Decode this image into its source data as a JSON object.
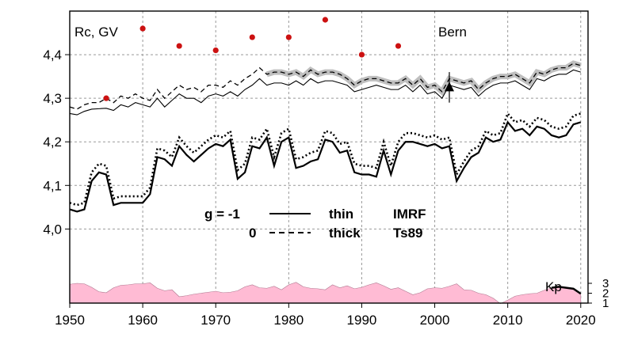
{
  "chart_data": {
    "type": "line",
    "ylabel": "Rc, GV",
    "station": "Bern",
    "kp_label": "Kp",
    "x_range": [
      1950,
      2021
    ],
    "y_range": [
      3.83,
      4.5
    ],
    "x_ticks": [
      "1950",
      "1960",
      "1970",
      "1980",
      "1990",
      "2000",
      "2010",
      "2020"
    ],
    "y_ticks": [
      "4,0",
      "4,1",
      "4,2",
      "4,3",
      "4,4"
    ],
    "kp_ticks": [
      "1",
      "2",
      "3"
    ],
    "grid": true,
    "legend": {
      "row1": {
        "g": "g  = -1",
        "model": "thin",
        "field": "IMRF"
      },
      "row2": {
        "g": "0",
        "model": "thick",
        "field": "Ts89"
      }
    },
    "years": [
      1950,
      1951,
      1952,
      1953,
      1954,
      1955,
      1956,
      1957,
      1958,
      1959,
      1960,
      1961,
      1962,
      1963,
      1964,
      1965,
      1966,
      1967,
      1968,
      1969,
      1970,
      1971,
      1972,
      1973,
      1974,
      1975,
      1976,
      1977,
      1978,
      1979,
      1980,
      1981,
      1982,
      1983,
      1984,
      1985,
      1986,
      1987,
      1988,
      1989,
      1990,
      1991,
      1992,
      1993,
      1994,
      1995,
      1996,
      1997,
      1998,
      1999,
      2000,
      2001,
      2002,
      2003,
      2004,
      2005,
      2006,
      2007,
      2008,
      2009,
      2010,
      2011,
      2012,
      2013,
      2014,
      2015,
      2016,
      2017,
      2018,
      2019,
      2020
    ],
    "series": [
      {
        "name": "IMRF, g=-1, thin",
        "style": "thin-solid",
        "values": [
          4.265,
          4.262,
          4.27,
          4.275,
          4.276,
          4.277,
          4.272,
          4.285,
          4.28,
          4.29,
          4.285,
          4.28,
          4.3,
          4.28,
          4.295,
          4.31,
          4.3,
          4.3,
          4.29,
          4.305,
          4.31,
          4.305,
          4.315,
          4.305,
          4.32,
          4.33,
          4.345,
          4.33,
          4.335,
          4.335,
          4.33,
          4.34,
          4.33,
          4.345,
          4.335,
          4.34,
          4.34,
          4.335,
          4.33,
          4.315,
          4.32,
          4.325,
          4.33,
          4.325,
          4.32,
          4.32,
          4.33,
          4.315,
          4.33,
          4.31,
          4.315,
          4.3,
          4.33,
          4.325,
          4.32,
          4.325,
          4.305,
          4.32,
          4.33,
          4.335,
          4.335,
          4.34,
          4.33,
          4.32,
          4.345,
          4.34,
          4.35,
          4.355,
          4.355,
          4.365,
          4.36
        ]
      },
      {
        "name": "Ts89, g=-1, thick",
        "style": "thin-dashed",
        "values": [
          4.28,
          4.275,
          4.285,
          4.29,
          4.29,
          4.3,
          4.29,
          4.305,
          4.3,
          4.31,
          4.3,
          4.295,
          4.32,
          4.3,
          4.315,
          4.33,
          4.32,
          4.325,
          4.315,
          4.33,
          4.33,
          4.325,
          4.34,
          4.33,
          4.345,
          4.355,
          4.37,
          4.355,
          4.36,
          4.36,
          4.355,
          4.36,
          4.35,
          4.365,
          4.355,
          4.36,
          4.36,
          4.355,
          4.345,
          4.33,
          4.34,
          4.345,
          4.345,
          4.34,
          4.335,
          4.335,
          4.345,
          4.33,
          4.345,
          4.325,
          4.33,
          4.315,
          4.345,
          4.34,
          4.335,
          4.34,
          4.32,
          4.335,
          4.345,
          4.35,
          4.35,
          4.355,
          4.345,
          4.335,
          4.36,
          4.355,
          4.365,
          4.37,
          4.37,
          4.38,
          4.375
        ]
      },
      {
        "name": "IMRF, g=0, thin",
        "style": "thick-solid",
        "values": [
          4.045,
          4.04,
          4.045,
          4.11,
          4.13,
          4.125,
          4.055,
          4.06,
          4.06,
          4.06,
          4.06,
          4.08,
          4.165,
          4.16,
          4.145,
          4.19,
          4.17,
          4.155,
          4.17,
          4.185,
          4.195,
          4.19,
          4.205,
          4.115,
          4.13,
          4.19,
          4.185,
          4.21,
          4.145,
          4.2,
          4.21,
          4.14,
          4.145,
          4.155,
          4.16,
          4.205,
          4.2,
          4.175,
          4.18,
          4.13,
          4.125,
          4.125,
          4.12,
          4.18,
          4.125,
          4.18,
          4.2,
          4.2,
          4.195,
          4.19,
          4.195,
          4.185,
          4.19,
          4.11,
          4.14,
          4.165,
          4.175,
          4.21,
          4.2,
          4.205,
          4.245,
          4.225,
          4.23,
          4.215,
          4.235,
          4.23,
          4.215,
          4.21,
          4.215,
          4.24,
          4.245
        ]
      },
      {
        "name": "Ts89, g=0, thick",
        "style": "thick-dotted",
        "values": [
          4.06,
          4.055,
          4.06,
          4.13,
          4.15,
          4.145,
          4.07,
          4.075,
          4.075,
          4.075,
          4.075,
          4.095,
          4.185,
          4.18,
          4.165,
          4.21,
          4.19,
          4.175,
          4.19,
          4.205,
          4.215,
          4.21,
          4.225,
          4.135,
          4.15,
          4.21,
          4.205,
          4.23,
          4.165,
          4.22,
          4.23,
          4.16,
          4.165,
          4.175,
          4.18,
          4.225,
          4.22,
          4.195,
          4.2,
          4.15,
          4.145,
          4.145,
          4.14,
          4.2,
          4.145,
          4.2,
          4.22,
          4.22,
          4.215,
          4.21,
          4.215,
          4.205,
          4.21,
          4.125,
          4.155,
          4.18,
          4.19,
          4.225,
          4.215,
          4.22,
          4.265,
          4.245,
          4.25,
          4.235,
          4.255,
          4.25,
          4.235,
          4.23,
          4.235,
          4.26,
          4.265
        ]
      },
      {
        "name": "Kp",
        "style": "area",
        "values": [
          2.9,
          3.0,
          2.95,
          2.6,
          2.15,
          2.05,
          2.55,
          2.8,
          2.85,
          2.95,
          2.95,
          3.05,
          2.5,
          2.25,
          2.35,
          1.65,
          1.75,
          1.9,
          2.0,
          2.1,
          2.2,
          2.05,
          2.1,
          2.25,
          2.65,
          2.85,
          2.55,
          2.5,
          2.7,
          2.35,
          2.85,
          3.1,
          2.65,
          2.5,
          2.45,
          2.35,
          2.85,
          2.55,
          2.75,
          2.45,
          2.6,
          2.85,
          3.05,
          2.75,
          2.4,
          2.55,
          2.2,
          1.85,
          2.05,
          2.45,
          2.55,
          2.5,
          2.7,
          2.95,
          2.35,
          2.3,
          2.0,
          1.85,
          1.5,
          0.95,
          1.3,
          1.7,
          1.85,
          1.95,
          2.0,
          2.3,
          2.55,
          2.65,
          2.55,
          2.45,
          1.95
        ]
      }
    ],
    "dots": {
      "years": [
        1955,
        1960,
        1965,
        1970,
        1975,
        1980,
        1985,
        1990,
        1995
      ],
      "values": [
        4.3,
        4.46,
        4.42,
        4.41,
        4.44,
        4.44,
        4.48,
        4.4,
        4.42
      ]
    },
    "marker": {
      "year": 2002,
      "value": 4.325,
      "error": 0.035
    },
    "colors": {
      "dots": "#cc1111",
      "kp_fill": "#ffbbd4",
      "grid": "#999999",
      "band": "#bfbfbf"
    }
  }
}
